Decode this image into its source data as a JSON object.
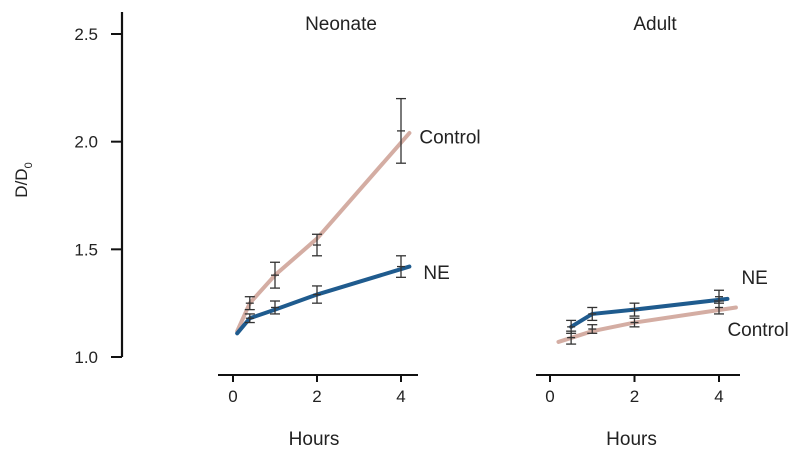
{
  "chart_data": {
    "type": "line",
    "ylabel_main": "D/D",
    "ylabel_sub": "0",
    "ylim": [
      1.0,
      2.5
    ],
    "yticks": [
      "1.0",
      "1.5",
      "2.0",
      "2.5"
    ],
    "ytick_values": [
      1.0,
      1.5,
      2.0,
      2.5
    ],
    "grid": false,
    "colors": {
      "Control": "#d4ada3",
      "NE": "#1f5b8e"
    },
    "panels": [
      {
        "title": "Neonate",
        "xlabel": "Hours",
        "xlim": [
          0,
          4.4
        ],
        "xticks": [
          "0",
          "2",
          "4"
        ],
        "xtick_values": [
          0,
          2,
          4
        ],
        "series": [
          {
            "name": "Control",
            "x": [
              0.1,
              0.4,
              1,
              2,
              4.2
            ],
            "y": [
              1.12,
              1.25,
              1.38,
              1.55,
              2.04
            ],
            "points": [
              {
                "x": 0.4,
                "y": 1.25,
                "err": 0.03
              },
              {
                "x": 1,
                "y": 1.38,
                "err": 0.06
              },
              {
                "x": 2,
                "y": 1.52,
                "err": 0.05
              },
              {
                "x": 4,
                "y": 2.05,
                "err": 0.15
              }
            ]
          },
          {
            "name": "NE",
            "x": [
              0.1,
              0.4,
              1,
              2,
              4.2
            ],
            "y": [
              1.11,
              1.18,
              1.22,
              1.29,
              1.42
            ],
            "points": [
              {
                "x": 0.4,
                "y": 1.18,
                "err": 0.02
              },
              {
                "x": 1,
                "y": 1.23,
                "err": 0.03
              },
              {
                "x": 2,
                "y": 1.29,
                "err": 0.04
              },
              {
                "x": 4,
                "y": 1.42,
                "err": 0.05
              }
            ]
          }
        ]
      },
      {
        "title": "Adult",
        "xlabel": "Hours",
        "xlim": [
          0,
          4.4
        ],
        "xticks": [
          "0",
          "2",
          "4"
        ],
        "xtick_values": [
          0,
          2,
          4
        ],
        "series": [
          {
            "name": "NE",
            "x": [
              0.5,
              1,
              2,
              4.2
            ],
            "y": [
              1.14,
              1.2,
              1.22,
              1.27
            ],
            "points": [
              {
                "x": 0.5,
                "y": 1.14,
                "err": 0.03
              },
              {
                "x": 1,
                "y": 1.2,
                "err": 0.03
              },
              {
                "x": 2,
                "y": 1.22,
                "err": 0.03
              },
              {
                "x": 4,
                "y": 1.28,
                "err": 0.03
              }
            ]
          },
          {
            "name": "Control",
            "x": [
              0.2,
              1,
              2,
              4.4
            ],
            "y": [
              1.07,
              1.12,
              1.16,
              1.23
            ],
            "points": [
              {
                "x": 0.5,
                "y": 1.09,
                "err": 0.03
              },
              {
                "x": 1,
                "y": 1.13,
                "err": 0.02
              },
              {
                "x": 2,
                "y": 1.16,
                "err": 0.02
              },
              {
                "x": 4,
                "y": 1.23,
                "err": 0.03
              }
            ]
          }
        ]
      }
    ]
  }
}
